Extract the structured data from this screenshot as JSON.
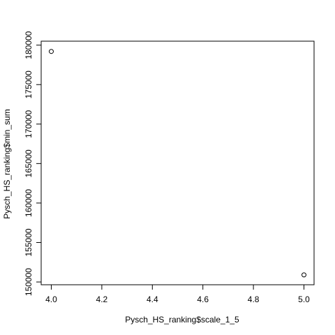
{
  "chart_data": {
    "type": "scatter",
    "title": "",
    "xlabel": "Pysch_HS_ranking$scale_1_5",
    "ylabel": "Pysch_HS_ranking$min_sum",
    "xlim": [
      3.96,
      5.04
    ],
    "ylim": [
      149650,
      180500
    ],
    "x_ticks": [
      4.0,
      4.2,
      4.4,
      4.6,
      4.8,
      5.0
    ],
    "x_tick_labels": [
      "4.0",
      "4.2",
      "4.4",
      "4.6",
      "4.8",
      "5.0"
    ],
    "y_ticks": [
      150000,
      155000,
      160000,
      165000,
      170000,
      175000,
      180000
    ],
    "y_tick_labels": [
      "150000",
      "155000",
      "160000",
      "165000",
      "170000",
      "175000",
      "180000"
    ],
    "grid": false,
    "marker": "open-circle",
    "points": [
      {
        "x": 4.0,
        "y": 179200
      },
      {
        "x": 5.0,
        "y": 150900
      }
    ]
  }
}
